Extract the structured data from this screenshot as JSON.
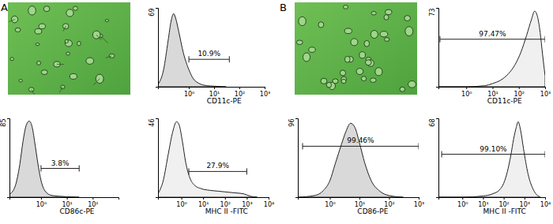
{
  "panels": [
    "A",
    "B"
  ],
  "chart_data": [
    {
      "type": "area",
      "x_label": "CD11c-PE",
      "log": "x",
      "color": "#d9d9d9",
      "x": [
        0.06,
        0.1,
        0.15,
        0.2,
        0.25,
        0.3,
        0.4,
        0.6,
        1,
        1.5,
        2.5,
        5,
        10,
        30
      ],
      "values": [
        2,
        15,
        40,
        58,
        64,
        60,
        48,
        30,
        15,
        7,
        3,
        1,
        0.5,
        0
      ],
      "xlim": [
        0.06,
        1000
      ],
      "xticks": [
        {
          "value": 1,
          "label": "10⁰"
        },
        {
          "value": 10,
          "label": "10¹"
        },
        {
          "value": 100,
          "label": "10²"
        },
        {
          "value": 1000,
          "label": "10³"
        }
      ],
      "ylim": [
        0,
        69
      ],
      "yticks": [
        69
      ],
      "gate": {
        "range": [
          1,
          40
        ],
        "y": 24,
        "label": "10.9%"
      }
    },
    {
      "type": "area",
      "x_label": "CD86c-PE",
      "log": "x",
      "color": "#d9d9d9",
      "x": [
        0.06,
        0.1,
        0.15,
        0.2,
        0.27,
        0.35,
        0.45,
        0.6,
        0.8,
        1,
        1.5,
        2.5,
        5,
        10,
        30
      ],
      "values": [
        3,
        12,
        35,
        60,
        78,
        82,
        76,
        55,
        32,
        18,
        6,
        2,
        1,
        0.5,
        0
      ],
      "xlim": [
        0.06,
        1000
      ],
      "xticks": [
        {
          "value": 1,
          "label": "10⁰"
        },
        {
          "value": 10,
          "label": "10¹"
        },
        {
          "value": 100,
          "label": "10²"
        }
      ],
      "ylim": [
        0,
        85
      ],
      "yticks": [
        85
      ],
      "gate": {
        "range": [
          1,
          30
        ],
        "y": 31,
        "label": "3.8%"
      }
    },
    {
      "type": "area",
      "x_label": "MHC II -FITC",
      "log": "x",
      "color": "#f0f0f0",
      "x": [
        0.085,
        0.15,
        0.25,
        0.4,
        0.6,
        0.8,
        1.1,
        1.6,
        2.5,
        4,
        8,
        20,
        50,
        120,
        300,
        700,
        1500,
        3000
      ],
      "values": [
        2,
        10,
        25,
        38,
        44,
        42,
        33,
        20,
        11,
        7,
        5,
        4,
        3.5,
        3,
        2.5,
        2,
        0.5,
        0
      ],
      "xlim": [
        0.085,
        10000
      ],
      "xticks": [
        {
          "value": 1,
          "label": "10⁰"
        },
        {
          "value": 10,
          "label": "10¹"
        },
        {
          "value": 100,
          "label": "10²"
        },
        {
          "value": 1000,
          "label": "10³"
        },
        {
          "value": 10000,
          "label": "10⁴"
        }
      ],
      "ylim": [
        0,
        46
      ],
      "yticks": [
        46
      ],
      "gate": {
        "range": [
          2.2,
          1000
        ],
        "y": 15,
        "label": "27.9%"
      }
    },
    {
      "type": "area",
      "x_label": "CD11c-PE",
      "log": "x",
      "color": "#f0f0f0",
      "x": [
        0.087,
        1,
        5,
        10,
        20,
        40,
        70,
        120,
        200,
        300,
        400,
        500,
        650,
        800,
        1000
      ],
      "values": [
        0,
        0,
        1,
        3,
        6,
        12,
        20,
        32,
        48,
        62,
        70,
        66,
        50,
        30,
        10
      ],
      "xlim": [
        0.087,
        1000
      ],
      "xticks": [
        {
          "value": 1,
          "label": "10⁰"
        },
        {
          "value": 10,
          "label": "10¹"
        },
        {
          "value": 100,
          "label": "10²"
        },
        {
          "value": 1000,
          "label": "10³"
        }
      ],
      "ylim": [
        0,
        73
      ],
      "yticks": [
        73
      ],
      "gate": {
        "range": [
          0.1,
          1000
        ],
        "y": 44,
        "label": "97.47%"
      }
    },
    {
      "type": "area",
      "x_label": "CD86-PE",
      "log": "x",
      "color": "#d9d9d9",
      "x": [
        0.083,
        0.3,
        0.6,
        1,
        1.5,
        2.5,
        3.5,
        5,
        7,
        10,
        15,
        25,
        50,
        100,
        300
      ],
      "values": [
        0,
        2,
        8,
        20,
        40,
        65,
        80,
        90,
        85,
        66,
        42,
        20,
        7,
        2,
        0
      ],
      "xlim": [
        0.083,
        1000
      ],
      "xticks": [
        {
          "value": 1,
          "label": "10⁰"
        },
        {
          "value": 10,
          "label": "10¹"
        },
        {
          "value": 100,
          "label": "10²"
        },
        {
          "value": 1000,
          "label": "10³"
        }
      ],
      "ylim": [
        0,
        96
      ],
      "yticks": [
        96
      ],
      "gate": {
        "range": [
          0.12,
          1000
        ],
        "y": 62,
        "label": "99.46%"
      }
    },
    {
      "type": "area",
      "x_label": "MHC II -FITC",
      "log": "x",
      "color": "#f0f0f0",
      "x": [
        0.07,
        1,
        10,
        30,
        60,
        100,
        150,
        220,
        300,
        400,
        500,
        650,
        900,
        1500,
        3000,
        6000
      ],
      "values": [
        0,
        0,
        1,
        3,
        6,
        12,
        22,
        36,
        50,
        60,
        65,
        58,
        42,
        20,
        5,
        0
      ],
      "xlim": [
        0.07,
        10000
      ],
      "xticks": [
        {
          "value": 1,
          "label": "10⁰"
        },
        {
          "value": 10,
          "label": "10¹"
        },
        {
          "value": 100,
          "label": "10²"
        },
        {
          "value": 1000,
          "label": "10³"
        },
        {
          "value": 10000,
          "label": "10⁴"
        }
      ],
      "ylim": [
        0,
        68
      ],
      "yticks": [
        68
      ],
      "gate": {
        "range": [
          0.1,
          10000
        ],
        "y": 37,
        "label": "99.10%"
      }
    }
  ]
}
